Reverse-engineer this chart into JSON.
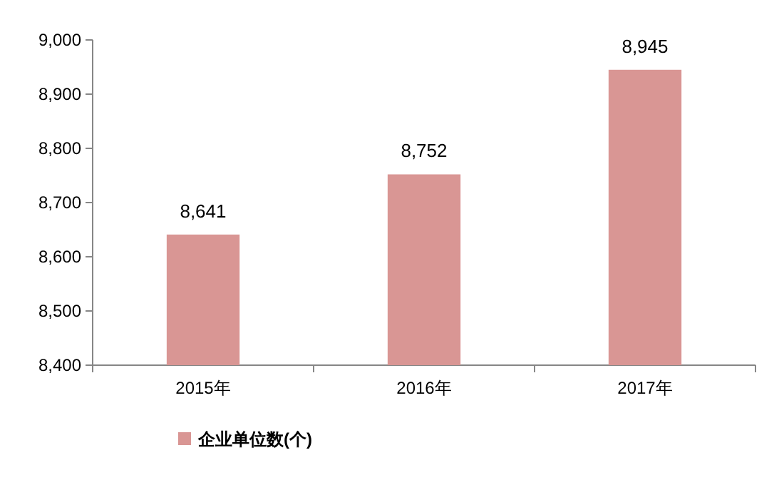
{
  "chart_data": {
    "type": "bar",
    "categories": [
      "2015年",
      "2016年",
      "2017年"
    ],
    "series": [
      {
        "name": "企业单位数(个)",
        "color": "#d99694",
        "values": [
          8641,
          8752,
          8945
        ]
      }
    ],
    "ylim": [
      8400,
      9000
    ],
    "yticks": [
      {
        "value": 8400,
        "label": "8,400"
      },
      {
        "value": 8500,
        "label": "8,500"
      },
      {
        "value": 8600,
        "label": "8,600"
      },
      {
        "value": 8700,
        "label": "8,700"
      },
      {
        "value": 8800,
        "label": "8,800"
      },
      {
        "value": 8900,
        "label": "8,900"
      },
      {
        "value": 9000,
        "label": "9,000"
      }
    ],
    "value_labels": [
      "8,641",
      "8,752",
      "8,945"
    ],
    "grid": false,
    "legend": "bottom"
  }
}
